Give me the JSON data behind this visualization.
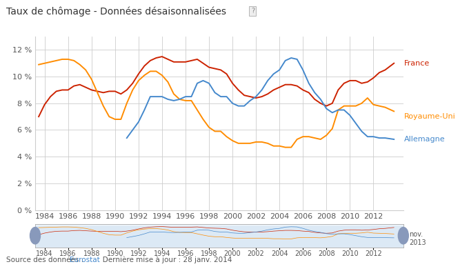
{
  "title": "Taux de chômage - Données désaisonnalisées",
  "background_color": "#ffffff",
  "grid_color": "#cccccc",
  "ylim": [
    0,
    13
  ],
  "yticks": [
    0,
    2,
    4,
    6,
    8,
    10,
    12
  ],
  "ytick_labels": [
    "0 %",
    "2 %",
    "4 %",
    "6 %",
    "8 %",
    "10 %",
    "12 %"
  ],
  "france_color": "#cc2200",
  "uk_color": "#ff8c00",
  "germany_color": "#4488cc",
  "france": {
    "years": [
      1983.5,
      1984.0,
      1984.5,
      1985.0,
      1985.5,
      1986.0,
      1986.5,
      1987.0,
      1987.5,
      1988.0,
      1988.5,
      1989.0,
      1989.5,
      1990.0,
      1990.5,
      1991.0,
      1991.5,
      1992.0,
      1992.5,
      1993.0,
      1993.5,
      1994.0,
      1994.5,
      1995.0,
      1995.5,
      1996.0,
      1996.5,
      1997.0,
      1997.5,
      1998.0,
      1998.5,
      1999.0,
      1999.5,
      2000.0,
      2000.5,
      2001.0,
      2001.5,
      2002.0,
      2002.5,
      2003.0,
      2003.5,
      2004.0,
      2004.5,
      2005.0,
      2005.5,
      2006.0,
      2006.5,
      2007.0,
      2007.5,
      2008.0,
      2008.5,
      2009.0,
      2009.5,
      2010.0,
      2010.5,
      2011.0,
      2011.5,
      2012.0,
      2012.5,
      2013.0,
      2013.75
    ],
    "values": [
      7.0,
      7.9,
      8.5,
      8.9,
      9.0,
      9.0,
      9.3,
      9.4,
      9.2,
      9.0,
      8.9,
      8.8,
      8.9,
      8.9,
      8.7,
      9.0,
      9.5,
      10.2,
      10.8,
      11.2,
      11.4,
      11.5,
      11.3,
      11.1,
      11.1,
      11.1,
      11.2,
      11.3,
      11.0,
      10.7,
      10.6,
      10.5,
      10.2,
      9.5,
      9.0,
      8.6,
      8.5,
      8.4,
      8.5,
      8.7,
      9.0,
      9.2,
      9.4,
      9.4,
      9.3,
      9.0,
      8.8,
      8.3,
      8.0,
      7.8,
      8.0,
      9.0,
      9.5,
      9.7,
      9.7,
      9.5,
      9.6,
      9.9,
      10.3,
      10.5,
      11.0
    ]
  },
  "uk": {
    "years": [
      1983.5,
      1984.0,
      1984.5,
      1985.0,
      1985.5,
      1986.0,
      1986.5,
      1987.0,
      1987.5,
      1988.0,
      1988.5,
      1989.0,
      1989.5,
      1990.0,
      1990.5,
      1991.0,
      1991.5,
      1992.0,
      1992.5,
      1993.0,
      1993.5,
      1994.0,
      1994.5,
      1995.0,
      1995.5,
      1996.0,
      1996.5,
      1997.0,
      1997.5,
      1998.0,
      1998.5,
      1999.0,
      1999.5,
      2000.0,
      2000.5,
      2001.0,
      2001.5,
      2002.0,
      2002.5,
      2003.0,
      2003.5,
      2004.0,
      2004.5,
      2005.0,
      2005.5,
      2006.0,
      2006.5,
      2007.0,
      2007.5,
      2008.0,
      2008.5,
      2009.0,
      2009.5,
      2010.0,
      2010.5,
      2011.0,
      2011.5,
      2012.0,
      2012.5,
      2013.0,
      2013.75
    ],
    "values": [
      10.9,
      11.0,
      11.1,
      11.2,
      11.3,
      11.3,
      11.2,
      10.9,
      10.5,
      9.8,
      8.8,
      7.8,
      7.0,
      6.8,
      6.8,
      8.0,
      9.0,
      9.7,
      10.1,
      10.4,
      10.4,
      10.1,
      9.6,
      8.7,
      8.3,
      8.2,
      8.2,
      7.5,
      6.8,
      6.2,
      5.9,
      5.9,
      5.5,
      5.2,
      5.0,
      5.0,
      5.0,
      5.1,
      5.1,
      5.0,
      4.8,
      4.8,
      4.7,
      4.7,
      5.3,
      5.5,
      5.5,
      5.4,
      5.3,
      5.6,
      6.1,
      7.5,
      7.8,
      7.8,
      7.8,
      8.0,
      8.4,
      7.9,
      7.8,
      7.7,
      7.4
    ]
  },
  "germany": {
    "years": [
      1991.0,
      1991.5,
      1992.0,
      1992.5,
      1993.0,
      1993.5,
      1994.0,
      1994.5,
      1995.0,
      1995.5,
      1996.0,
      1996.5,
      1997.0,
      1997.5,
      1998.0,
      1998.5,
      1999.0,
      1999.5,
      2000.0,
      2000.5,
      2001.0,
      2001.5,
      2002.0,
      2002.5,
      2003.0,
      2003.5,
      2004.0,
      2004.5,
      2005.0,
      2005.5,
      2006.0,
      2006.5,
      2007.0,
      2007.5,
      2008.0,
      2008.5,
      2009.0,
      2009.5,
      2010.0,
      2010.5,
      2011.0,
      2011.5,
      2012.0,
      2012.5,
      2013.0,
      2013.75
    ],
    "values": [
      5.4,
      6.0,
      6.6,
      7.5,
      8.5,
      8.5,
      8.5,
      8.3,
      8.2,
      8.3,
      8.5,
      8.5,
      9.5,
      9.7,
      9.5,
      8.8,
      8.5,
      8.5,
      8.0,
      7.8,
      7.8,
      8.2,
      8.5,
      9.0,
      9.7,
      10.2,
      10.5,
      11.2,
      11.4,
      11.3,
      10.5,
      9.5,
      8.8,
      8.3,
      7.6,
      7.3,
      7.5,
      7.5,
      7.1,
      6.5,
      5.9,
      5.5,
      5.5,
      5.4,
      5.4,
      5.3
    ]
  },
  "scrollbar_xticks": [
    1984,
    1986,
    1988,
    1990,
    1992,
    1994,
    1996,
    1998,
    2000,
    2002,
    2004,
    2006,
    2008,
    2010,
    2012
  ]
}
